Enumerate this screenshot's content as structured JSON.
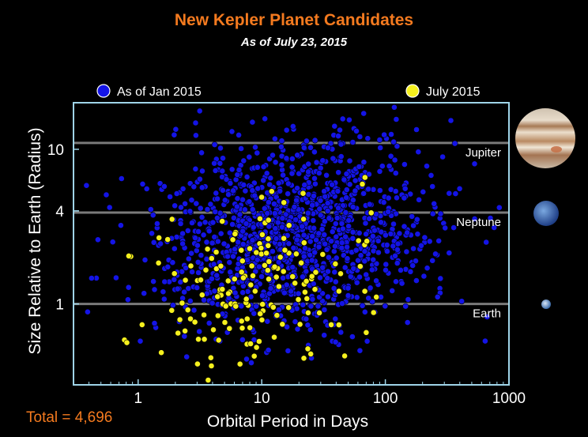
{
  "header": {
    "title": "New Kepler Planet Candidates",
    "subtitle": "As of July 23, 2015"
  },
  "footer": {
    "total": "Total = 4,696"
  },
  "colors": {
    "title": "#f47a1f",
    "frame": "#9fd4e8",
    "series_jan": "#1414e6",
    "series_july": "#f5f01e",
    "reference_line": "#7a7a7a",
    "background": "#000000"
  },
  "chart_data": {
    "type": "scatter",
    "title": "New Kepler Planet Candidates",
    "subtitle": "As of July 23, 2015",
    "xlabel": "Orbital Period in Days",
    "ylabel": "Size Relative to Earth (Radius)",
    "xscale": "log",
    "yscale": "log",
    "xlim": [
      0.3,
      1000
    ],
    "ylim": [
      0.3,
      20
    ],
    "xticks": [
      1,
      10,
      100,
      1000
    ],
    "xtick_labels": [
      "1",
      "10",
      "100",
      "1000"
    ],
    "yticks": [
      1,
      4,
      10
    ],
    "ytick_labels": [
      "1",
      "4",
      "10"
    ],
    "grid": false,
    "legend_position": "top",
    "reference_lines": [
      {
        "label": "Earth",
        "y": 1,
        "icon": "earth-icon"
      },
      {
        "label": "Neptune",
        "y": 3.9,
        "icon": "neptune-icon"
      },
      {
        "label": "Jupiter",
        "y": 11,
        "icon": "jupiter-icon"
      }
    ],
    "series": [
      {
        "name": "As of Jan 2015",
        "color": "#1414e6",
        "count_approx": 4175,
        "distribution": {
          "x_log10_mean": 1.25,
          "x_log10_sd": 0.55,
          "y_log10_mean": 0.42,
          "y_log10_sd": 0.3
        }
      },
      {
        "name": "July 2015",
        "color": "#f5f01e",
        "count_approx": 521,
        "distribution": {
          "x_log10_mean": 0.95,
          "x_log10_sd": 0.5,
          "y_log10_mean": 0.1,
          "y_log10_sd": 0.28
        }
      }
    ],
    "total": 4696
  }
}
